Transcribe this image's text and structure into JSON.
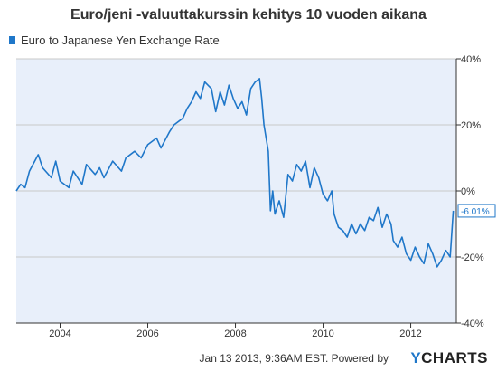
{
  "colors": {
    "series": "#1f77c9",
    "plot_bg": "#e8effa",
    "axis": "#333333",
    "grid": "#c8c8c8",
    "callout_text": "#1f77c9"
  },
  "chart_data": {
    "type": "line",
    "title": "Euro/jeni -valuuttakurssin kehitys 10 vuoden aikana",
    "series": [
      {
        "name": "Euro to Japanese Yen Exchange Rate",
        "x": [
          2003.0,
          2003.1,
          2003.2,
          2003.3,
          2003.5,
          2003.6,
          2003.8,
          2003.9,
          2004.0,
          2004.2,
          2004.3,
          2004.5,
          2004.6,
          2004.8,
          2004.9,
          2005.0,
          2005.2,
          2005.4,
          2005.5,
          2005.7,
          2005.85,
          2006.0,
          2006.2,
          2006.3,
          2006.5,
          2006.6,
          2006.8,
          2006.9,
          2007.0,
          2007.1,
          2007.2,
          2007.3,
          2007.45,
          2007.55,
          2007.65,
          2007.75,
          2007.85,
          2007.95,
          2008.05,
          2008.15,
          2008.25,
          2008.35,
          2008.45,
          2008.55,
          2008.6,
          2008.65,
          2008.7,
          2008.75,
          2008.8,
          2008.85,
          2008.9,
          2009.0,
          2009.1,
          2009.2,
          2009.3,
          2009.4,
          2009.5,
          2009.6,
          2009.7,
          2009.8,
          2009.9,
          2010.0,
          2010.1,
          2010.2,
          2010.25,
          2010.35,
          2010.45,
          2010.55,
          2010.65,
          2010.75,
          2010.85,
          2010.95,
          2011.05,
          2011.15,
          2011.25,
          2011.35,
          2011.45,
          2011.55,
          2011.6,
          2011.7,
          2011.8,
          2011.9,
          2012.0,
          2012.1,
          2012.2,
          2012.3,
          2012.4,
          2012.5,
          2012.6,
          2012.7,
          2012.8,
          2012.9,
          2012.97
        ],
        "values": [
          0.0,
          2.0,
          1.0,
          6.0,
          11.0,
          7.0,
          4.0,
          9.0,
          3.0,
          1.0,
          6.0,
          2.0,
          8.0,
          5.0,
          7.0,
          4.0,
          9.0,
          6.0,
          10.0,
          12.0,
          10.0,
          14.0,
          16.0,
          13.0,
          18.0,
          20.0,
          22.0,
          25.0,
          27.0,
          30.0,
          28.0,
          33.0,
          31.0,
          24.0,
          30.0,
          26.0,
          32.0,
          28.0,
          25.0,
          27.0,
          23.0,
          31.0,
          33.0,
          34.0,
          28.0,
          20.0,
          16.0,
          12.0,
          -6.0,
          0.0,
          -7.0,
          -3.0,
          -8.0,
          5.0,
          3.0,
          8.0,
          6.0,
          9.0,
          1.0,
          7.0,
          4.0,
          -1.0,
          -3.0,
          0.0,
          -7.0,
          -11.0,
          -12.0,
          -14.0,
          -10.0,
          -13.0,
          -10.0,
          -12.0,
          -8.0,
          -9.0,
          -5.0,
          -11.0,
          -7.0,
          -10.0,
          -15.0,
          -17.0,
          -14.0,
          -19.0,
          -21.0,
          -17.0,
          -20.0,
          -22.0,
          -16.0,
          -19.0,
          -23.0,
          -21.0,
          -18.0,
          -20.0,
          -6.01
        ]
      }
    ],
    "x_ticks": [
      "2004",
      "2006",
      "2008",
      "2010",
      "2012"
    ],
    "x_tick_values": [
      2004,
      2006,
      2008,
      2010,
      2012
    ],
    "xlim": [
      2003.0,
      2013.04
    ],
    "y_ticks": [
      "40%",
      "20%",
      "0%",
      "-20%",
      "-40%"
    ],
    "y_tick_values": [
      40,
      20,
      0,
      -20,
      -40
    ],
    "ylim": [
      -40,
      40
    ],
    "last_value_label": "-6.01%",
    "grid": true,
    "legend": "top-left"
  },
  "footer": {
    "text": "Jan 13 2013, 9:36AM EST.  Powered by",
    "brand_prefix": "Y",
    "brand_rest": "CHARTS"
  }
}
